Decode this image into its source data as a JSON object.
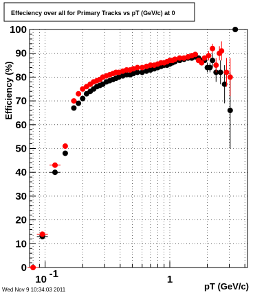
{
  "footer": {
    "timestamp": "Wed Nov  9 10:34:03 2011"
  },
  "chart_data": {
    "type": "scatter",
    "title": "Effeciency over all for Primary Tracks vs pT (GeV/c) at 0",
    "xlabel": "pT (GeV/c)",
    "ylabel": "Efficiency (%)",
    "xscale": "log",
    "xlim": [
      0.075,
      4.2
    ],
    "ylim": [
      0,
      100
    ],
    "grid": true,
    "legend": "none",
    "x_tick_labels": [
      {
        "value": 0.1,
        "base": "10",
        "exp": "-1"
      },
      {
        "value": 1,
        "base": "1",
        "exp": ""
      }
    ],
    "y_tick_labels": [
      "0",
      "10",
      "20",
      "30",
      "40",
      "50",
      "60",
      "70",
      "80",
      "90",
      "100"
    ],
    "series": [
      {
        "color": "#000000",
        "points": [
          [
            0.095,
            13
          ],
          [
            0.12,
            40
          ],
          [
            0.145,
            48
          ],
          [
            0.17,
            67
          ],
          [
            0.185,
            69
          ],
          [
            0.2,
            71
          ],
          [
            0.215,
            73
          ],
          [
            0.23,
            74
          ],
          [
            0.245,
            75
          ],
          [
            0.26,
            76
          ],
          [
            0.275,
            76.5
          ],
          [
            0.29,
            77
          ],
          [
            0.31,
            78
          ],
          [
            0.33,
            78.5
          ],
          [
            0.35,
            79
          ],
          [
            0.37,
            79.5
          ],
          [
            0.39,
            80
          ],
          [
            0.42,
            80.5
          ],
          [
            0.45,
            81
          ],
          [
            0.48,
            81
          ],
          [
            0.51,
            81.5
          ],
          [
            0.55,
            82
          ],
          [
            0.6,
            82
          ],
          [
            0.65,
            82.5
          ],
          [
            0.7,
            83
          ],
          [
            0.75,
            83.5
          ],
          [
            0.8,
            84
          ],
          [
            0.85,
            84.5
          ],
          [
            0.9,
            85
          ],
          [
            0.95,
            85
          ],
          [
            1.0,
            85.5
          ],
          [
            1.05,
            86
          ],
          [
            1.1,
            86.5
          ],
          [
            1.2,
            87
          ],
          [
            1.3,
            87.5
          ],
          [
            1.4,
            88
          ],
          [
            1.5,
            88
          ],
          [
            1.6,
            88.5
          ],
          [
            1.7,
            88
          ],
          [
            1.8,
            87
          ],
          [
            1.9,
            87
          ],
          [
            2.0,
            84
          ],
          [
            2.1,
            84
          ],
          [
            2.2,
            87
          ],
          [
            2.35,
            82
          ],
          [
            2.55,
            82
          ],
          [
            2.75,
            77
          ],
          [
            3.05,
            66
          ],
          [
            3.35,
            100
          ]
        ],
        "y_error": [
          0,
          0,
          0,
          0,
          0,
          0,
          0,
          0,
          0,
          0,
          0,
          0,
          0,
          0,
          0,
          0,
          0,
          0,
          0,
          0,
          0,
          0,
          0,
          0,
          0,
          0,
          0,
          0,
          0,
          0,
          0,
          0,
          0,
          0,
          0,
          0,
          0,
          0,
          0,
          1,
          1,
          2,
          2,
          3,
          4,
          5,
          8,
          16,
          0
        ]
      },
      {
        "color": "#ff0000",
        "points": [
          [
            0.08,
            0
          ],
          [
            0.095,
            14
          ],
          [
            0.12,
            43
          ],
          [
            0.145,
            51
          ],
          [
            0.17,
            70
          ],
          [
            0.185,
            73
          ],
          [
            0.2,
            75
          ],
          [
            0.215,
            76
          ],
          [
            0.23,
            77
          ],
          [
            0.245,
            78
          ],
          [
            0.26,
            78.5
          ],
          [
            0.275,
            79
          ],
          [
            0.29,
            80
          ],
          [
            0.31,
            80.5
          ],
          [
            0.33,
            81
          ],
          [
            0.35,
            81.5
          ],
          [
            0.37,
            82
          ],
          [
            0.39,
            82
          ],
          [
            0.42,
            82.5
          ],
          [
            0.45,
            83
          ],
          [
            0.48,
            83
          ],
          [
            0.51,
            83.5
          ],
          [
            0.55,
            84
          ],
          [
            0.6,
            84
          ],
          [
            0.65,
            84.5
          ],
          [
            0.7,
            85
          ],
          [
            0.75,
            85
          ],
          [
            0.8,
            85.5
          ],
          [
            0.85,
            86
          ],
          [
            0.9,
            86
          ],
          [
            0.95,
            86.5
          ],
          [
            1.0,
            87
          ],
          [
            1.05,
            87
          ],
          [
            1.1,
            87.5
          ],
          [
            1.2,
            88
          ],
          [
            1.3,
            88
          ],
          [
            1.4,
            88.5
          ],
          [
            1.5,
            89
          ],
          [
            1.6,
            89.5
          ],
          [
            1.7,
            87
          ],
          [
            1.8,
            86
          ],
          [
            1.9,
            88
          ],
          [
            2.05,
            89
          ],
          [
            2.2,
            92
          ],
          [
            2.35,
            85
          ],
          [
            2.5,
            90
          ],
          [
            2.6,
            91
          ],
          [
            2.85,
            82
          ],
          [
            3.05,
            80
          ]
        ],
        "y_error": [
          0,
          0,
          0,
          0,
          0,
          0,
          0,
          0,
          0,
          0,
          0,
          0,
          0,
          0,
          0,
          0,
          0,
          0,
          0,
          0,
          0,
          0,
          0,
          0,
          0,
          0,
          0,
          0,
          0,
          0,
          0,
          0,
          0,
          0,
          0,
          0,
          0,
          0,
          0,
          1,
          1,
          1,
          2,
          2,
          3,
          3,
          4,
          6,
          8
        ]
      }
    ]
  }
}
